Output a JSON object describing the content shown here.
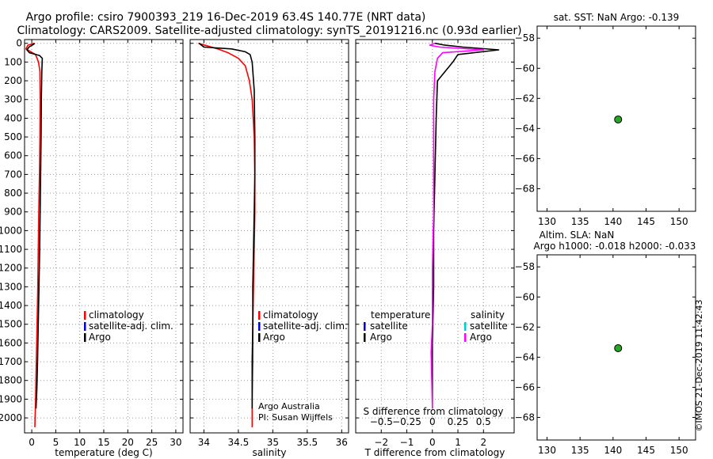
{
  "header": {
    "title_line1": "Argo profile: csiro 7900393_219 16-Dec-2019 63.4S 140.77E (NRT data)",
    "title_line2": "Climatology: CARS2009. Satellite-adjusted climatology: synTS_20191216.nc (0.93d earlier)"
  },
  "credit": "©IMOS 21-Dec-2019 11:42:43",
  "colors": {
    "climatology": "#ff0000",
    "satellite": "#0000cc",
    "argo": "#000000",
    "s_satellite": "#00cccc",
    "s_argo": "#ff00ff",
    "dot": "#22aa22",
    "grid": "#999999"
  },
  "chart_data": [
    {
      "type": "line",
      "panel": "temperature",
      "xlabel": "temperature (deg C)",
      "ylabel": "",
      "xlim": [
        -1.5,
        31.5
      ],
      "ylim": [
        2080,
        -20
      ],
      "xticks": [
        0,
        5,
        10,
        15,
        20,
        25,
        30
      ],
      "yticks": [
        0,
        100,
        200,
        300,
        400,
        500,
        600,
        700,
        800,
        900,
        1000,
        1100,
        1200,
        1300,
        1400,
        1500,
        1600,
        1700,
        1800,
        1900,
        2000
      ],
      "grid": true,
      "legend": [
        "climatology",
        "satellite-adj. clim.",
        "Argo"
      ],
      "series": [
        {
          "name": "climatology",
          "x": [
            0.5,
            -0.8,
            -1.2,
            0.8,
            1.4,
            1.7,
            1.75,
            1.7,
            1.6,
            1.45,
            1.35,
            1.25,
            1.1,
            0.95,
            0.8,
            0.65
          ],
          "y": [
            0,
            10,
            30,
            60,
            100,
            150,
            300,
            500,
            700,
            900,
            1100,
            1300,
            1500,
            1700,
            1900,
            2050
          ]
        },
        {
          "name": "Argo",
          "x": [
            0.6,
            0.4,
            -0.6,
            -1.0,
            -0.5,
            1.6,
            2.2,
            2.1,
            2.0,
            1.95,
            1.85,
            1.75,
            1.65,
            1.5,
            1.35,
            1.2,
            1.05,
            0.9
          ],
          "y": [
            0,
            5,
            20,
            35,
            50,
            65,
            80,
            150,
            300,
            500,
            700,
            900,
            1100,
            1300,
            1500,
            1700,
            1850,
            1950
          ]
        }
      ]
    },
    {
      "type": "line",
      "panel": "salinity",
      "xlabel": "salinity",
      "xlim": [
        33.8,
        36.1
      ],
      "ylim": [
        2080,
        -20
      ],
      "xticks": [
        34,
        34.5,
        35,
        35.5,
        36
      ],
      "grid": true,
      "legend": [
        "climatology",
        "satellite-adj. clim.",
        "Argo"
      ],
      "annotation_line1": "Argo Australia",
      "annotation_line2": "PI: Susan Wijffels",
      "series": [
        {
          "name": "climatology",
          "x": [
            33.92,
            34.2,
            34.35,
            34.5,
            34.6,
            34.66,
            34.7,
            34.73,
            34.74,
            34.74,
            34.73,
            34.72,
            34.71,
            34.71,
            34.7,
            34.7
          ],
          "y": [
            0,
            30,
            50,
            80,
            120,
            200,
            300,
            500,
            700,
            900,
            1100,
            1300,
            1500,
            1700,
            1900,
            2050
          ]
        },
        {
          "name": "Argo",
          "x": [
            33.93,
            34.0,
            34.4,
            34.6,
            34.67,
            34.7,
            34.73,
            34.74,
            34.74,
            34.73,
            34.72,
            34.71,
            34.71,
            34.7,
            34.7
          ],
          "y": [
            0,
            20,
            30,
            45,
            60,
            100,
            250,
            500,
            700,
            900,
            1100,
            1300,
            1500,
            1700,
            1950
          ]
        }
      ]
    },
    {
      "type": "line",
      "panel": "difference",
      "xlabel": "T difference from climatology",
      "xlabel_top": "S difference from climatology",
      "xlim": [
        -3,
        3.2
      ],
      "ylim": [
        2080,
        -20
      ],
      "xticks": [
        -2,
        -1,
        0,
        1,
        2
      ],
      "xticks_s": [
        -0.5,
        -0.25,
        0,
        0.25,
        0.5
      ],
      "grid": true,
      "legend_headers": [
        "temperature",
        "salinity"
      ],
      "legend_left": [
        "satellite",
        "Argo"
      ],
      "legend_right": [
        "satellite",
        "Argo"
      ],
      "series": [
        {
          "name": "T difference (Argo - climatology)",
          "x": [
            0.1,
            0.5,
            1.2,
            2.6,
            1.0,
            0.8,
            0.5,
            0.2,
            0.15,
            0.1,
            0.05,
            0.05,
            0.0,
            0.0,
            0.0
          ],
          "y": [
            0,
            10,
            20,
            35,
            60,
            100,
            150,
            200,
            400,
            700,
            1000,
            1300,
            1600,
            1800,
            1950
          ]
        },
        {
          "name": "S difference (Argo - climatology)",
          "x": [
            0.1,
            -0.1,
            0.3,
            2.0,
            0.4,
            0.2,
            0.1,
            0.05,
            0.05,
            0.05,
            0.0,
            0.0,
            -0.05,
            0.0
          ],
          "y": [
            0,
            10,
            20,
            35,
            50,
            80,
            150,
            300,
            600,
            900,
            1200,
            1500,
            1650,
            1950
          ]
        }
      ]
    },
    {
      "type": "scatter",
      "panel": "sst",
      "title": "sat. SST: NaN Argo: -0.139",
      "xlim": [
        128.5,
        152.5
      ],
      "ylim": [
        -69.5,
        -57.2
      ],
      "xticks": [
        130,
        135,
        140,
        145,
        150
      ],
      "yticks": [
        -58,
        -60,
        -62,
        -64,
        -66,
        -68
      ],
      "points": [
        {
          "x": 140.77,
          "y": -63.4
        }
      ]
    },
    {
      "type": "scatter",
      "panel": "sla",
      "title_line1": "Altim. SLA: NaN",
      "title_line2": "Argo h1000: -0.018 h2000: -0.033",
      "xlim": [
        128.5,
        152.5
      ],
      "ylim": [
        -69.5,
        -57.2
      ],
      "xticks": [
        130,
        135,
        140,
        145,
        150
      ],
      "yticks": [
        -58,
        -60,
        -62,
        -64,
        -66,
        -68
      ],
      "points": [
        {
          "x": 140.77,
          "y": -63.4
        }
      ]
    }
  ]
}
